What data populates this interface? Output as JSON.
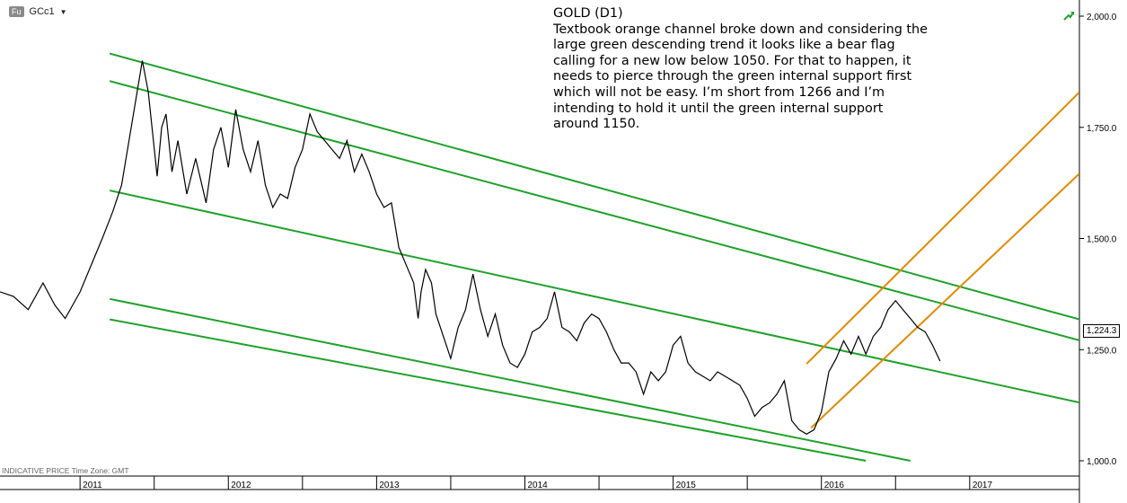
{
  "header": {
    "badge": "Fu",
    "ticker": "GCc1",
    "dropdown_icon": "caret-down-icon",
    "trend_icon": "green-arrow-up-icon"
  },
  "note": {
    "title": "GOLD (D1)",
    "body": "Textbook orange channel broke down and considering the large green descending trend it looks like a bear flag calling for a new low below 1050. For that to happen, it needs to pierce through the green internal support first which will not be easy. I’m short from 1266 and I’m intending to hold it until the green internal support around 1150."
  },
  "footer": {
    "label": "INDICATIVE PRICE   Time Zone: GMT"
  },
  "last_price_label": "1,224.3",
  "colors": {
    "price": "#000000",
    "green_channel": "#1fa12a",
    "orange_channel": "#e08a00",
    "axis": "#000000"
  },
  "chart_data": {
    "type": "line",
    "title": "",
    "xlabel": "",
    "ylabel": "",
    "ylim": [
      1000,
      2000
    ],
    "y_ticks": [
      "1,000.0",
      "1,250.0",
      "1,500.0",
      "1,750.0",
      "2,000.0"
    ],
    "y_tick_values": [
      1000,
      1250,
      1500,
      1750,
      2000
    ],
    "x_ticks": [
      "2011",
      "2012",
      "2013",
      "2014",
      "2015",
      "2016",
      "2017"
    ],
    "x_tick_values": [
      2011.0,
      2012.0,
      2013.0,
      2014.0,
      2015.0,
      2016.0,
      2017.0
    ],
    "xlim": [
      2010.46,
      2017.74
    ],
    "grid": false,
    "series": [
      {
        "kind": "price",
        "x": [
          2010.46,
          2010.55,
          2010.65,
          2010.75,
          2010.83,
          2010.9,
          2011.0,
          2011.05,
          2011.15,
          2011.22,
          2011.28,
          2011.36,
          2011.42,
          2011.46,
          2011.52,
          2011.55,
          2011.58,
          2011.62,
          2011.66,
          2011.72,
          2011.78,
          2011.85,
          2011.9,
          2011.95,
          2012.0,
          2012.05,
          2012.1,
          2012.15,
          2012.2,
          2012.25,
          2012.3,
          2012.35,
          2012.4,
          2012.45,
          2012.5,
          2012.55,
          2012.6,
          2012.65,
          2012.7,
          2012.75,
          2012.8,
          2012.85,
          2012.9,
          2012.95,
          2013.0,
          2013.05,
          2013.1,
          2013.15,
          2013.2,
          2013.25,
          2013.28,
          2013.3,
          2013.33,
          2013.37,
          2013.4,
          2013.45,
          2013.5,
          2013.55,
          2013.6,
          2013.65,
          2013.7,
          2013.75,
          2013.8,
          2013.85,
          2013.9,
          2013.95,
          2014.0,
          2014.05,
          2014.1,
          2014.15,
          2014.2,
          2014.25,
          2014.3,
          2014.35,
          2014.4,
          2014.45,
          2014.5,
          2014.55,
          2014.6,
          2014.65,
          2014.7,
          2014.75,
          2014.8,
          2014.85,
          2014.9,
          2014.95,
          2015.0,
          2015.05,
          2015.1,
          2015.15,
          2015.2,
          2015.25,
          2015.3,
          2015.35,
          2015.4,
          2015.45,
          2015.5,
          2015.55,
          2015.6,
          2015.65,
          2015.7,
          2015.75,
          2015.8,
          2015.85,
          2015.9,
          2015.95,
          2016.0,
          2016.05,
          2016.1,
          2016.15,
          2016.2,
          2016.25,
          2016.3,
          2016.35,
          2016.4,
          2016.45,
          2016.5,
          2016.55,
          2016.6,
          2016.65,
          2016.7,
          2016.75,
          2016.8
        ],
        "y": [
          1380,
          1370,
          1340,
          1400,
          1350,
          1320,
          1380,
          1420,
          1500,
          1560,
          1620,
          1780,
          1900,
          1830,
          1640,
          1750,
          1780,
          1650,
          1720,
          1600,
          1680,
          1580,
          1700,
          1750,
          1660,
          1790,
          1700,
          1650,
          1720,
          1620,
          1570,
          1600,
          1590,
          1660,
          1700,
          1780,
          1740,
          1720,
          1700,
          1680,
          1720,
          1650,
          1690,
          1650,
          1600,
          1570,
          1580,
          1480,
          1440,
          1400,
          1320,
          1380,
          1430,
          1400,
          1330,
          1280,
          1230,
          1300,
          1340,
          1420,
          1340,
          1280,
          1330,
          1260,
          1220,
          1210,
          1240,
          1290,
          1300,
          1320,
          1380,
          1300,
          1290,
          1270,
          1310,
          1330,
          1320,
          1290,
          1250,
          1220,
          1220,
          1200,
          1150,
          1200,
          1180,
          1200,
          1260,
          1280,
          1220,
          1200,
          1190,
          1180,
          1200,
          1190,
          1180,
          1170,
          1140,
          1100,
          1120,
          1130,
          1150,
          1180,
          1090,
          1070,
          1060,
          1070,
          1110,
          1200,
          1230,
          1270,
          1240,
          1280,
          1240,
          1280,
          1300,
          1340,
          1360,
          1340,
          1320,
          1300,
          1290,
          1260,
          1224.3
        ]
      }
    ],
    "channel_lines": [
      {
        "name": "",
        "color": "green",
        "x": [
          2011.2,
          2017.74
        ],
        "y": [
          1916,
          1318
        ]
      },
      {
        "name": "",
        "color": "green",
        "x": [
          2011.2,
          2017.74
        ],
        "y": [
          1854,
          1271
        ]
      },
      {
        "name": "",
        "color": "green",
        "x": [
          2011.2,
          2017.74
        ],
        "y": [
          1608,
          1131
        ]
      },
      {
        "name": "",
        "color": "green",
        "x": [
          2011.2,
          2016.6
        ],
        "y": [
          1364,
          1000
        ]
      },
      {
        "name": "",
        "color": "green",
        "x": [
          2011.2,
          2016.3
        ],
        "y": [
          1318,
          1000
        ]
      },
      {
        "name": "",
        "color": "orange",
        "x": [
          2015.9,
          2017.74
        ],
        "y": [
          1218,
          1829
        ]
      },
      {
        "name": "",
        "color": "orange",
        "x": [
          2015.93,
          2017.74
        ],
        "y": [
          1074,
          1646
        ]
      }
    ]
  }
}
